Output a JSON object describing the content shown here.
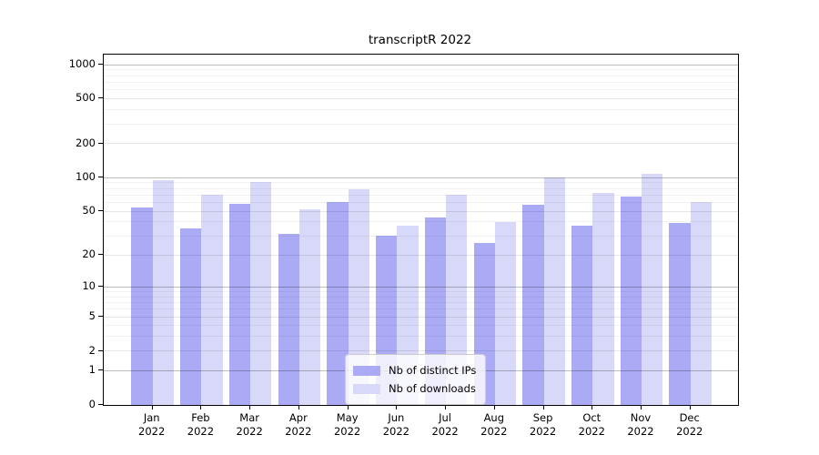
{
  "chart_data": {
    "type": "bar",
    "title": "transcriptR 2022",
    "year": "2022",
    "months": [
      "Jan",
      "Feb",
      "Mar",
      "Apr",
      "May",
      "Jun",
      "Jul",
      "Aug",
      "Sep",
      "Oct",
      "Nov",
      "Dec"
    ],
    "series": [
      {
        "name": "Nb of distinct IPs",
        "color": "#aaaaf5",
        "values": [
          54,
          35,
          58,
          31,
          60,
          30,
          44,
          26,
          57,
          37,
          68,
          39
        ]
      },
      {
        "name": "Nb of downloads",
        "color": "#d8d8f8",
        "values": [
          95,
          70,
          91,
          52,
          78,
          37,
          70,
          40,
          100,
          73,
          108,
          61
        ]
      }
    ],
    "yscale": "log1p",
    "yticks": [
      0,
      1,
      2,
      5,
      10,
      20,
      50,
      100,
      200,
      500,
      1000
    ],
    "yticks_medium": [
      2,
      5,
      20,
      50,
      200,
      500
    ],
    "yticks_major": [
      1,
      10,
      100,
      1000
    ],
    "yticks_minor": [
      3,
      4,
      6,
      7,
      8,
      9,
      30,
      40,
      60,
      70,
      80,
      90,
      300,
      400,
      600,
      700,
      800,
      900
    ],
    "ylim": [
      0,
      1150
    ],
    "xlabel": "",
    "ylabel": "",
    "grid": true,
    "legend_position": "lower-center"
  }
}
